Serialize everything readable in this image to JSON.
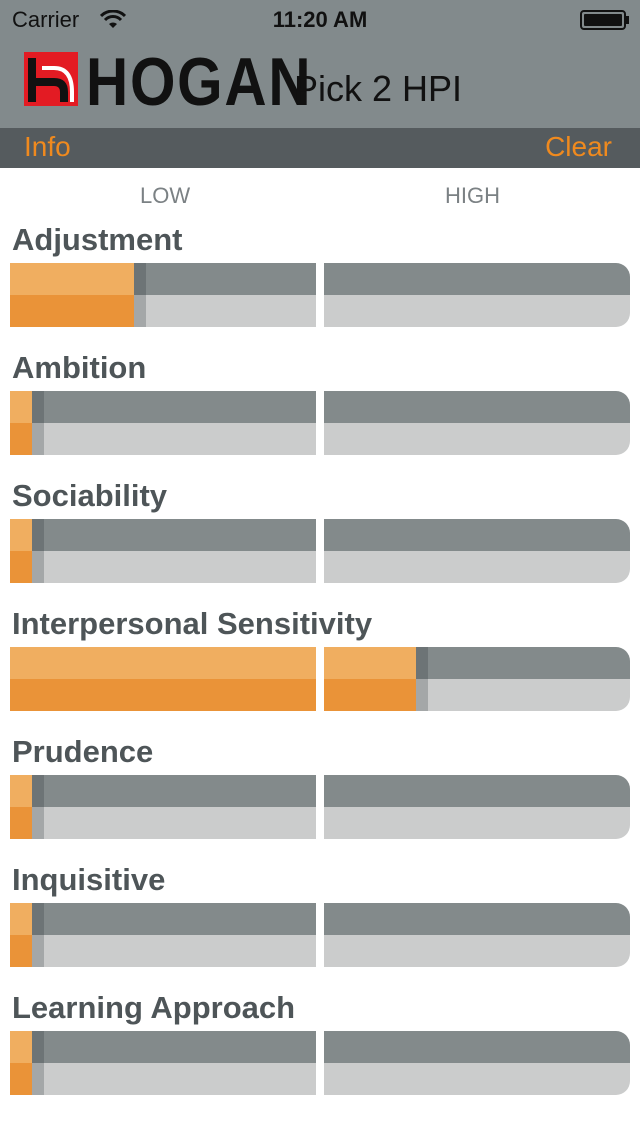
{
  "status_bar": {
    "carrier": "Carrier",
    "time": "11:20 AM",
    "icons": [
      "wifi-icon",
      "battery-icon"
    ]
  },
  "header": {
    "logo_text": "HOGAN",
    "app_title": "Pick 2 HPI",
    "brand_color": "#e31b23"
  },
  "toolbar": {
    "info_label": "Info",
    "clear_label": "Clear",
    "accent_color": "#f08a1e"
  },
  "scale": {
    "low_label": "LOW",
    "high_label": "HIGH"
  },
  "traits": [
    {
      "label": "Adjustment",
      "value": 0.2
    },
    {
      "label": "Ambition",
      "value": 0.035
    },
    {
      "label": "Sociability",
      "value": 0.035
    },
    {
      "label": "Interpersonal Sensitivity",
      "value": 0.655
    },
    {
      "label": "Prudence",
      "value": 0.035
    },
    {
      "label": "Inquisitive",
      "value": 0.035
    },
    {
      "label": "Learning Approach",
      "value": 0.035
    }
  ]
}
